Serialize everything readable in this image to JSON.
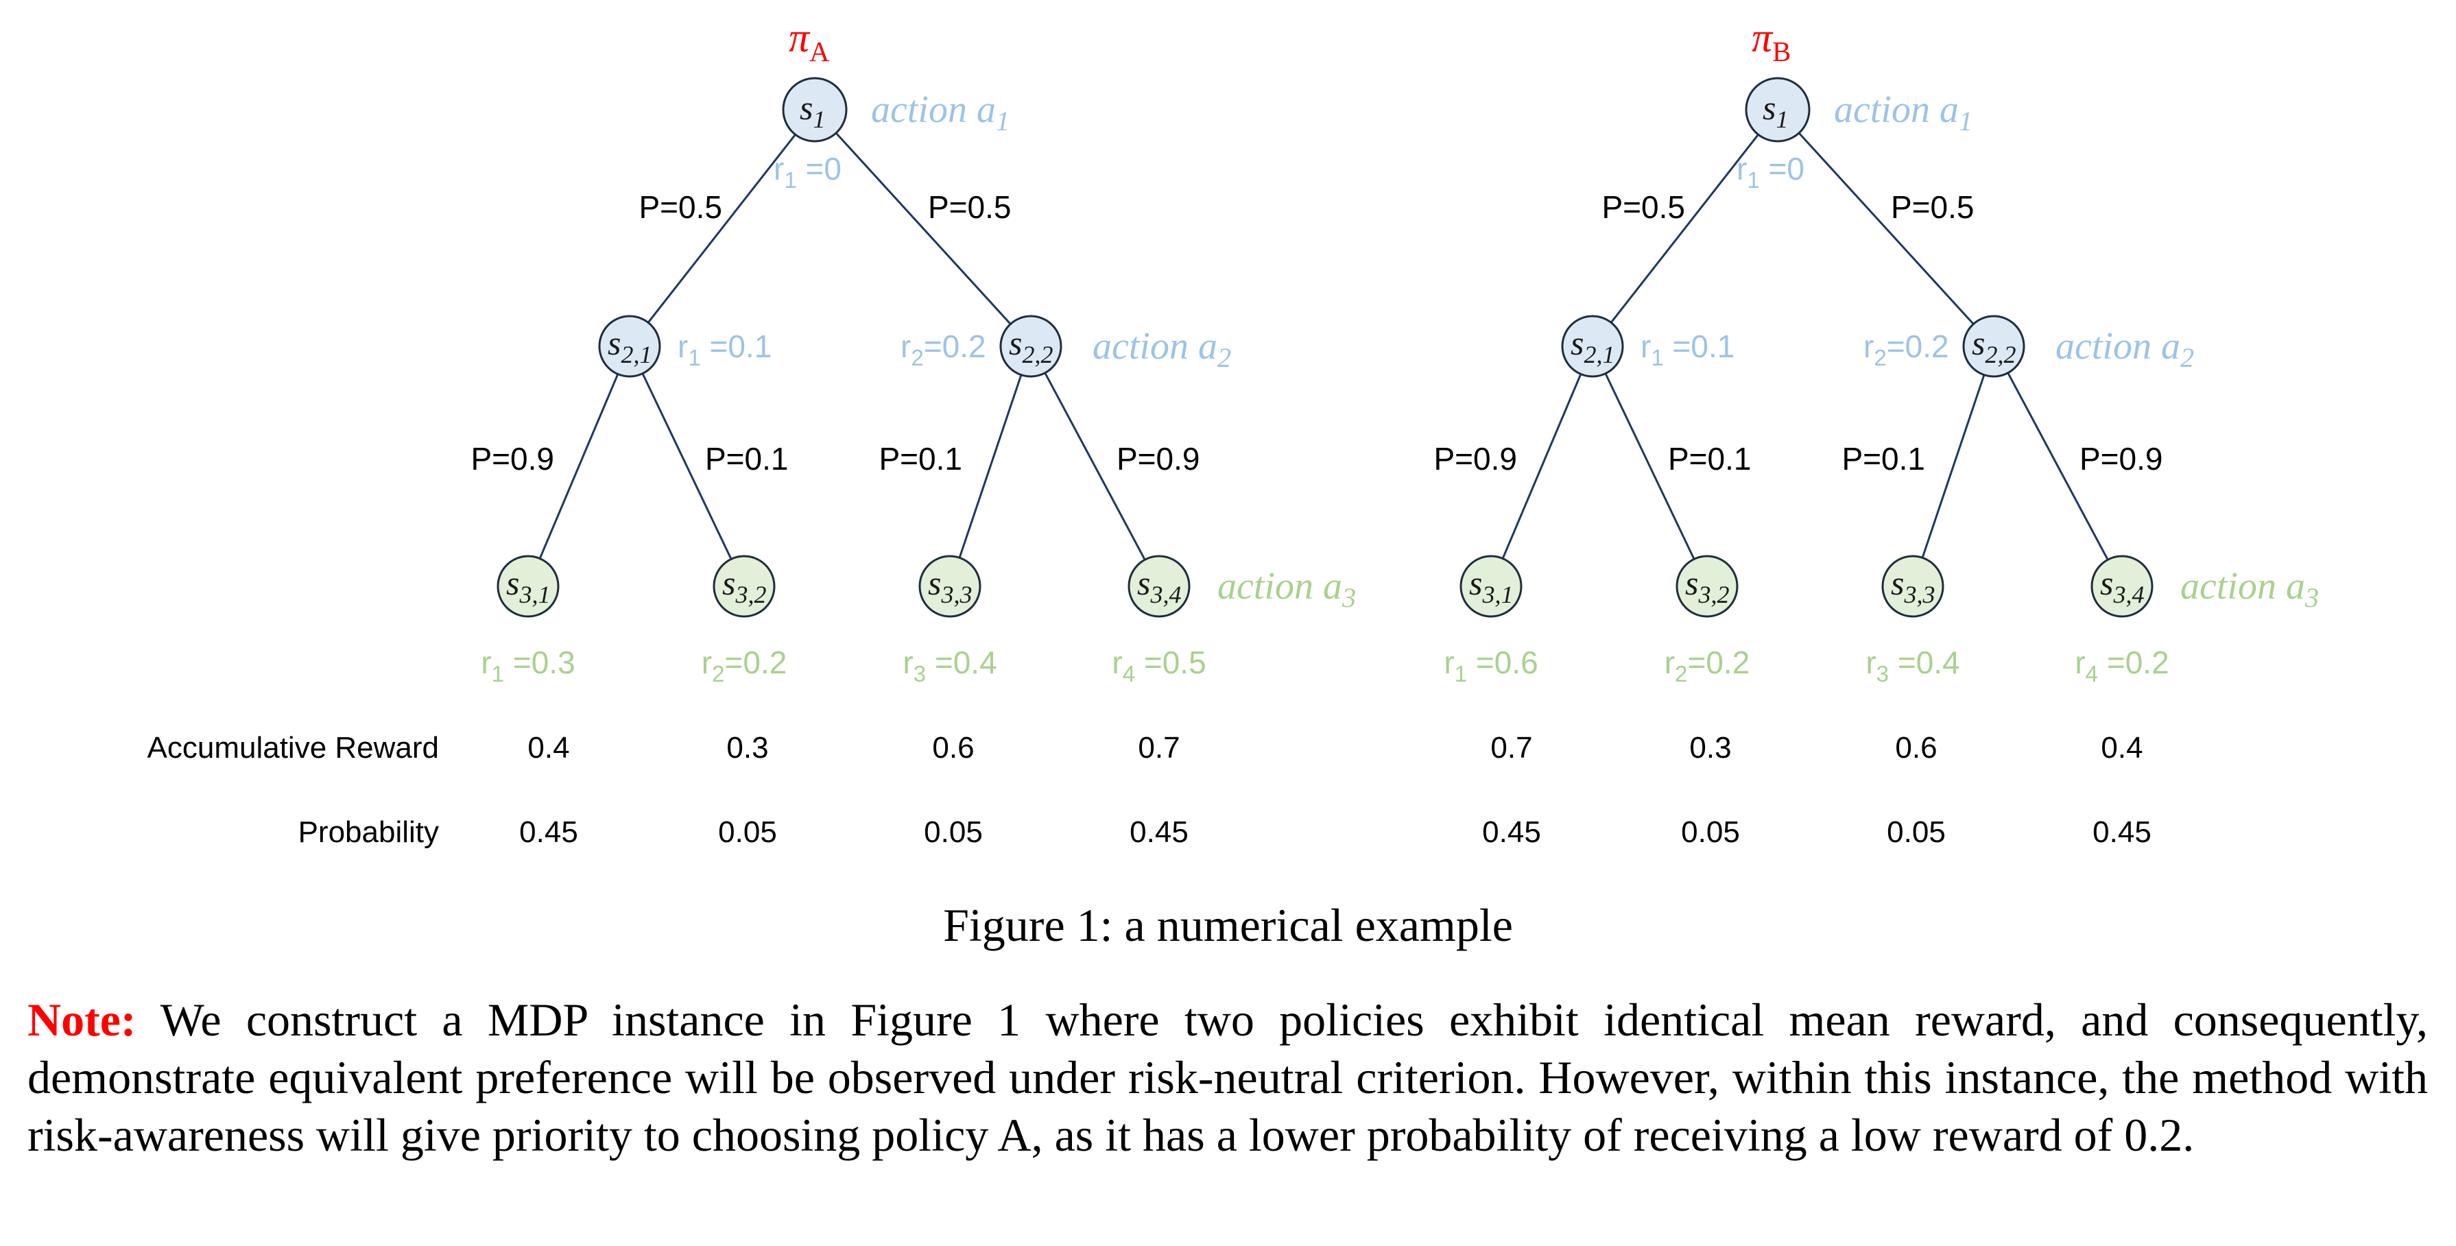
{
  "figure": {
    "policies": [
      {
        "policy_label": "πA",
        "root": {
          "state": "s1",
          "action": "action a1",
          "reward": "r1 =0"
        },
        "level1_probs": [
          "P=0.5",
          "P=0.5"
        ],
        "level2_nodes": [
          {
            "state": "s2,1",
            "reward": "r1 =0.1"
          },
          {
            "state": "s2,2",
            "reward": "r2=0.2",
            "action": "action a2"
          }
        ],
        "level2_probs": [
          "P=0.9",
          "P=0.1",
          "P=0.1",
          "P=0.9"
        ],
        "leaves": [
          {
            "state": "s3,1",
            "reward": "r1 =0.3"
          },
          {
            "state": "s3,2",
            "reward": "r2=0.2"
          },
          {
            "state": "s3,3",
            "reward": "r3 =0.4"
          },
          {
            "state": "s3,4",
            "reward": "r4 =0.5"
          }
        ],
        "leaf_action": "action a3",
        "accumulative_rewards": [
          "0.4",
          "0.3",
          "0.6",
          "0.7"
        ],
        "probabilities": [
          "0.45",
          "0.05",
          "0.05",
          "0.45"
        ]
      },
      {
        "policy_label": "πB",
        "root": {
          "state": "s1",
          "action": "action a1",
          "reward": "r1 =0"
        },
        "level1_probs": [
          "P=0.5",
          "P=0.5"
        ],
        "level2_nodes": [
          {
            "state": "s2,1",
            "reward": "r1 =0.1"
          },
          {
            "state": "s2,2",
            "reward": "r2=0.2",
            "action": "action a2"
          }
        ],
        "level2_probs": [
          "P=0.9",
          "P=0.1",
          "P=0.1",
          "P=0.9"
        ],
        "leaves": [
          {
            "state": "s3,1",
            "reward": "r1 =0.6"
          },
          {
            "state": "s3,2",
            "reward": "r2=0.2"
          },
          {
            "state": "s3,3",
            "reward": "r3 =0.4"
          },
          {
            "state": "s3,4",
            "reward": "r4 =0.2"
          }
        ],
        "leaf_action": "action a3",
        "accumulative_rewards": [
          "0.7",
          "0.3",
          "0.6",
          "0.4"
        ],
        "probabilities": [
          "0.45",
          "0.05",
          "0.05",
          "0.45"
        ]
      }
    ],
    "row_labels": {
      "accumulative_reward": "Accumulative Reward",
      "probability": "Probability"
    },
    "colors": {
      "policy_label": "#ff0000",
      "blue_annotations": "#9dc3e6",
      "green_annotations": "#a9d18e",
      "node_blue_fill": "#dce9f5",
      "node_green_fill": "#e2efd9",
      "edge": "#1f3864"
    }
  },
  "caption": "Figure 1: a numerical example",
  "note": {
    "label": "Note:",
    "text": " We construct a MDP instance in Figure 1 where two policies exhibit identical mean reward, and consequently, demonstrate equivalent preference will be observed under risk-neutral criterion. However, within this instance, the method with risk-awareness will give priority to choosing policy A, as it has a lower probability of receiving a low reward of 0.2."
  }
}
